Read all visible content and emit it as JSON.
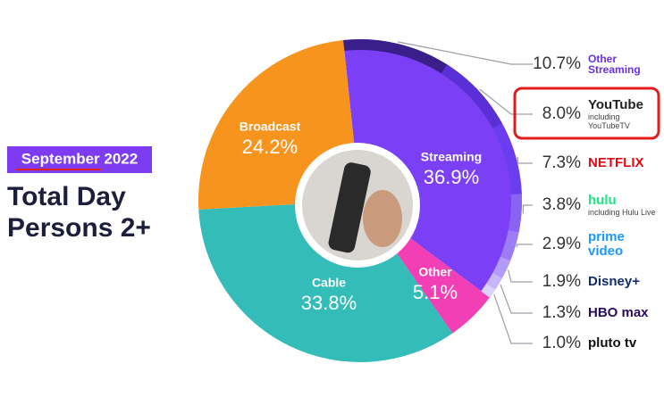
{
  "chart_data": {
    "type": "donut",
    "date_label": "September 2022",
    "title_lines": [
      "Total Day",
      "Persons 2+"
    ],
    "categories": [
      "Streaming",
      "Other",
      "Cable",
      "Broadcast"
    ],
    "values": [
      36.9,
      5.1,
      33.8,
      24.2
    ],
    "value_labels": [
      "36.9%",
      "5.1%",
      "33.8%",
      "24.2%"
    ],
    "colors": [
      "#7b3ff5",
      "#f23fb5",
      "#33bcb8",
      "#f7941d"
    ],
    "streaming_services": {
      "names": [
        "Other Streaming",
        "YouTube",
        "NETFLIX",
        "hulu",
        "prime video",
        "Disney+",
        "HBO max",
        "pluto tv"
      ],
      "sublabels": [
        null,
        "including YouTubeTV",
        null,
        "including Hulu Live",
        null,
        null,
        null,
        null
      ],
      "values": [
        10.7,
        8.0,
        7.3,
        3.8,
        2.9,
        1.9,
        1.3,
        1.0
      ],
      "value_labels": [
        "10.7%",
        "8.0%",
        "7.3%",
        "3.8%",
        "2.9%",
        "1.9%",
        "1.3%",
        "1.0%"
      ],
      "colors": [
        "#3a1f8a",
        "#5a30d6",
        "#6a3ef0",
        "#8a63f5",
        "#9d7cf7",
        "#b39bf9",
        "#c7b6fb",
        "#dcd0fd"
      ],
      "logo_colors": [
        "#6b2fe8",
        "#222222",
        "#e50914",
        "#1ce783",
        "#1a98ff",
        "#0f2d6b",
        "#2b0a5e",
        "#111111"
      ]
    }
  }
}
